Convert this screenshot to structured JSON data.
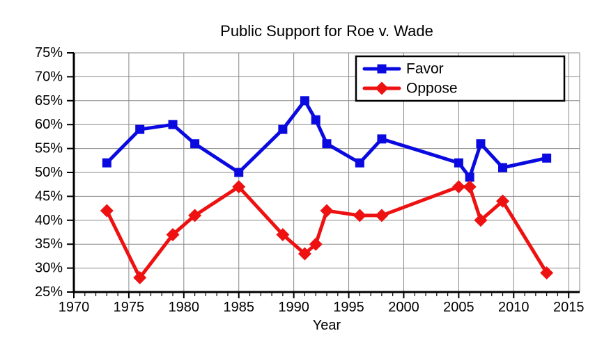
{
  "page": {
    "background": "#ffffff"
  },
  "chart_data": {
    "type": "line",
    "title": "Public Support for Roe v. Wade",
    "xlabel": "Year",
    "ylabel": "",
    "xlim": [
      1970,
      2016
    ],
    "ylim": [
      25,
      75
    ],
    "grid": true,
    "legend_position": "upper-right-inside",
    "x_ticks": [
      1970,
      1975,
      1980,
      1985,
      1990,
      1995,
      2000,
      2005,
      2010,
      2015
    ],
    "x_tick_labels": [
      "1970",
      "1975",
      "1980",
      "1985",
      "1990",
      "1995",
      "2000",
      "2005",
      "2010",
      "2015"
    ],
    "x_minor_tick_step": 1,
    "y_ticks": [
      25,
      30,
      35,
      40,
      45,
      50,
      55,
      60,
      65,
      70,
      75
    ],
    "y_tick_labels": [
      "25%",
      "30%",
      "35%",
      "40%",
      "45%",
      "50%",
      "55%",
      "60%",
      "65%",
      "70%",
      "75%"
    ],
    "x": [
      1973,
      1976,
      1979,
      1981,
      1985,
      1989,
      1991,
      1992,
      1993,
      1996,
      1998,
      2005,
      2006,
      2007,
      2009,
      2013
    ],
    "series": [
      {
        "name": "Favor",
        "color": "#0a0ae0",
        "marker": "square",
        "values": [
          52,
          59,
          60,
          56,
          50,
          59,
          65,
          61,
          56,
          52,
          57,
          52,
          49,
          56,
          51,
          53
        ]
      },
      {
        "name": "Oppose",
        "color": "#ee1111",
        "marker": "diamond",
        "values": [
          42,
          28,
          37,
          41,
          47,
          37,
          33,
          35,
          42,
          41,
          41,
          47,
          47,
          40,
          44,
          29
        ]
      }
    ],
    "grid_color": "#888888",
    "axis_color": "#000000",
    "text_color": "#000000"
  }
}
